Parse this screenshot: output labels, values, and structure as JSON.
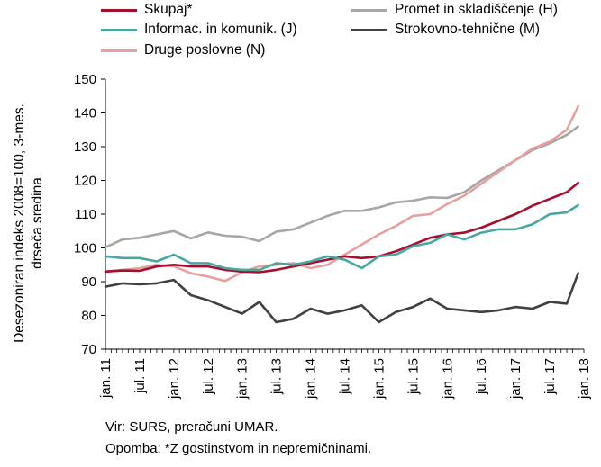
{
  "chart_data": {
    "type": "line",
    "ylabel_line1": "Desezoniran indeks 2008=100, 3-mes.",
    "ylabel_line2": "drseča sredina",
    "ylim": [
      70,
      150
    ],
    "yticks": [
      70,
      80,
      90,
      100,
      110,
      120,
      130,
      140,
      150
    ],
    "xlim": [
      "2011-01",
      "2018-01"
    ],
    "xticks": [
      {
        "pos": "2011-01",
        "label": "jan. 11"
      },
      {
        "pos": "2011-07",
        "label": "jul. 11"
      },
      {
        "pos": "2012-01",
        "label": "jan. 12"
      },
      {
        "pos": "2012-07",
        "label": "jul. 12"
      },
      {
        "pos": "2013-01",
        "label": "jan. 13"
      },
      {
        "pos": "2013-07",
        "label": "jul. 13"
      },
      {
        "pos": "2014-01",
        "label": "jan. 14"
      },
      {
        "pos": "2014-07",
        "label": "jul. 14"
      },
      {
        "pos": "2015-01",
        "label": "jan. 15"
      },
      {
        "pos": "2015-07",
        "label": "jul. 15"
      },
      {
        "pos": "2016-01",
        "label": "jan. 16"
      },
      {
        "pos": "2016-07",
        "label": "jul. 16"
      },
      {
        "pos": "2017-01",
        "label": "jan. 17"
      },
      {
        "pos": "2017-07",
        "label": "jul. 17"
      },
      {
        "pos": "2018-01",
        "label": "jan. 18"
      }
    ],
    "grid": false,
    "legend_position": "top",
    "series": [
      {
        "name": "Promet in skladiščenje (H)",
        "color": "#a6a6a6",
        "points": [
          [
            "2011-01",
            100.2
          ],
          [
            "2011-04",
            102.5
          ],
          [
            "2011-07",
            103.0
          ],
          [
            "2011-10",
            104.0
          ],
          [
            "2012-01",
            105.0
          ],
          [
            "2012-04",
            102.8
          ],
          [
            "2012-07",
            104.6
          ],
          [
            "2012-10",
            103.6
          ],
          [
            "2013-01",
            103.3
          ],
          [
            "2013-04",
            102.0
          ],
          [
            "2013-07",
            104.8
          ],
          [
            "2013-10",
            105.5
          ],
          [
            "2014-01",
            107.5
          ],
          [
            "2014-04",
            109.5
          ],
          [
            "2014-07",
            111.0
          ],
          [
            "2014-10",
            111.0
          ],
          [
            "2015-01",
            112.0
          ],
          [
            "2015-04",
            113.5
          ],
          [
            "2015-07",
            114.0
          ],
          [
            "2015-10",
            115.0
          ],
          [
            "2016-01",
            114.8
          ],
          [
            "2016-04",
            116.5
          ],
          [
            "2016-07",
            120.0
          ],
          [
            "2016-10",
            123.0
          ],
          [
            "2017-01",
            126.0
          ],
          [
            "2017-04",
            129.0
          ],
          [
            "2017-07",
            131.0
          ],
          [
            "2017-10",
            133.5
          ],
          [
            "2017-12",
            136.0
          ]
        ]
      },
      {
        "name": "Druge poslovne (N)",
        "color": "#e6a0a0",
        "points": [
          [
            "2011-01",
            93.0
          ],
          [
            "2011-04",
            93.5
          ],
          [
            "2011-07",
            94.0
          ],
          [
            "2011-10",
            95.0
          ],
          [
            "2012-01",
            94.5
          ],
          [
            "2012-04",
            92.5
          ],
          [
            "2012-07",
            91.5
          ],
          [
            "2012-10",
            90.2
          ],
          [
            "2013-01",
            92.8
          ],
          [
            "2013-04",
            94.5
          ],
          [
            "2013-07",
            95.0
          ],
          [
            "2013-10",
            95.5
          ],
          [
            "2014-01",
            94.0
          ],
          [
            "2014-04",
            95.0
          ],
          [
            "2014-07",
            98.0
          ],
          [
            "2014-10",
            101.0
          ],
          [
            "2015-01",
            104.0
          ],
          [
            "2015-04",
            106.5
          ],
          [
            "2015-07",
            109.5
          ],
          [
            "2015-10",
            110.0
          ],
          [
            "2016-01",
            113.0
          ],
          [
            "2016-04",
            115.5
          ],
          [
            "2016-07",
            119.0
          ],
          [
            "2016-10",
            122.5
          ],
          [
            "2017-01",
            126.0
          ],
          [
            "2017-04",
            129.5
          ],
          [
            "2017-07",
            131.5
          ],
          [
            "2017-10",
            135.0
          ],
          [
            "2017-12",
            142.0
          ]
        ]
      },
      {
        "name": "Skupaj*",
        "color": "#a50f2d",
        "points": [
          [
            "2011-01",
            93.0
          ],
          [
            "2011-04",
            93.3
          ],
          [
            "2011-07",
            93.2
          ],
          [
            "2011-10",
            94.5
          ],
          [
            "2012-01",
            95.0
          ],
          [
            "2012-04",
            94.5
          ],
          [
            "2012-07",
            94.5
          ],
          [
            "2012-10",
            93.5
          ],
          [
            "2013-01",
            93.0
          ],
          [
            "2013-04",
            92.8
          ],
          [
            "2013-07",
            93.5
          ],
          [
            "2013-10",
            94.5
          ],
          [
            "2014-01",
            95.5
          ],
          [
            "2014-04",
            96.5
          ],
          [
            "2014-07",
            97.5
          ],
          [
            "2014-10",
            97.0
          ],
          [
            "2015-01",
            97.5
          ],
          [
            "2015-04",
            99.0
          ],
          [
            "2015-07",
            101.0
          ],
          [
            "2015-10",
            103.0
          ],
          [
            "2016-01",
            104.0
          ],
          [
            "2016-04",
            104.5
          ],
          [
            "2016-07",
            106.0
          ],
          [
            "2016-10",
            108.0
          ],
          [
            "2017-01",
            110.0
          ],
          [
            "2017-04",
            112.5
          ],
          [
            "2017-07",
            114.5
          ],
          [
            "2017-10",
            116.5
          ],
          [
            "2017-12",
            119.3
          ]
        ]
      },
      {
        "name": "Informac. in komunik. (J)",
        "color": "#4aa7a0",
        "points": [
          [
            "2011-01",
            97.5
          ],
          [
            "2011-04",
            97.0
          ],
          [
            "2011-07",
            97.0
          ],
          [
            "2011-10",
            96.0
          ],
          [
            "2012-01",
            98.0
          ],
          [
            "2012-04",
            95.5
          ],
          [
            "2012-07",
            95.5
          ],
          [
            "2012-10",
            94.0
          ],
          [
            "2013-01",
            93.5
          ],
          [
            "2013-04",
            93.5
          ],
          [
            "2013-07",
            95.5
          ],
          [
            "2013-10",
            95.0
          ],
          [
            "2014-01",
            96.0
          ],
          [
            "2014-04",
            97.5
          ],
          [
            "2014-07",
            96.5
          ],
          [
            "2014-10",
            94.0
          ],
          [
            "2015-01",
            97.5
          ],
          [
            "2015-04",
            98.0
          ],
          [
            "2015-07",
            100.5
          ],
          [
            "2015-10",
            101.5
          ],
          [
            "2016-01",
            104.0
          ],
          [
            "2016-04",
            102.5
          ],
          [
            "2016-07",
            104.5
          ],
          [
            "2016-10",
            105.5
          ],
          [
            "2017-01",
            105.5
          ],
          [
            "2017-04",
            107.0
          ],
          [
            "2017-07",
            110.0
          ],
          [
            "2017-10",
            110.5
          ],
          [
            "2017-12",
            112.7
          ]
        ]
      },
      {
        "name": "Strokovno-tehnične (M)",
        "color": "#404040",
        "points": [
          [
            "2011-01",
            88.5
          ],
          [
            "2011-04",
            89.5
          ],
          [
            "2011-07",
            89.2
          ],
          [
            "2011-10",
            89.5
          ],
          [
            "2012-01",
            90.5
          ],
          [
            "2012-04",
            86.0
          ],
          [
            "2012-07",
            84.5
          ],
          [
            "2012-10",
            82.5
          ],
          [
            "2013-01",
            80.5
          ],
          [
            "2013-04",
            84.0
          ],
          [
            "2013-07",
            78.0
          ],
          [
            "2013-10",
            79.0
          ],
          [
            "2014-01",
            82.0
          ],
          [
            "2014-04",
            80.5
          ],
          [
            "2014-07",
            81.5
          ],
          [
            "2014-10",
            83.0
          ],
          [
            "2015-01",
            78.0
          ],
          [
            "2015-04",
            81.0
          ],
          [
            "2015-07",
            82.5
          ],
          [
            "2015-10",
            85.0
          ],
          [
            "2016-01",
            82.0
          ],
          [
            "2016-04",
            81.5
          ],
          [
            "2016-07",
            81.0
          ],
          [
            "2016-10",
            81.5
          ],
          [
            "2017-01",
            82.5
          ],
          [
            "2017-04",
            82.0
          ],
          [
            "2017-07",
            84.0
          ],
          [
            "2017-10",
            83.5
          ],
          [
            "2017-12",
            92.5
          ]
        ]
      }
    ]
  },
  "legend": [
    {
      "label": "Skupaj*",
      "color": "#a50f2d"
    },
    {
      "label": "Informac. in komunik. (J)",
      "color": "#4aa7a0"
    },
    {
      "label": "Druge poslovne (N)",
      "color": "#e6a0a0"
    },
    {
      "label": "Promet in skladiščenje (H)",
      "color": "#a6a6a6"
    },
    {
      "label": "Strokovno-tehnične (M)",
      "color": "#404040"
    }
  ],
  "notes": {
    "source": "Vir: SURS, preračuni UMAR.",
    "remark": "Opomba: *Z gostinstvom in nepremičninami."
  }
}
